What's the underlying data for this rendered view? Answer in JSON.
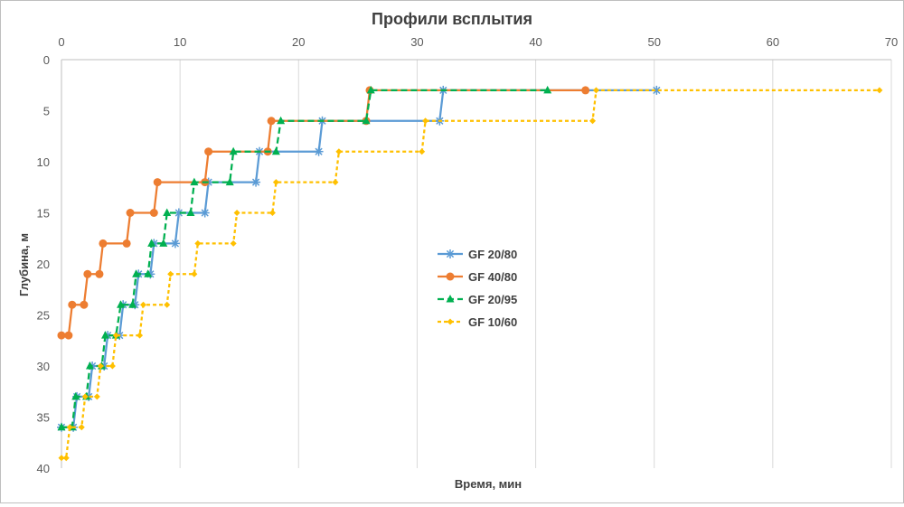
{
  "chart_data": {
    "type": "line",
    "title": "Профили всплытия",
    "xlabel": "Время, мин",
    "ylabel": "Глубина, м",
    "xlim": [
      0,
      70
    ],
    "ylim": [
      0,
      40
    ],
    "y_reversed": true,
    "x_axis_position": "top",
    "x_ticks": [
      0,
      10,
      20,
      30,
      40,
      50,
      60,
      70
    ],
    "y_ticks": [
      0,
      5,
      10,
      15,
      20,
      25,
      30,
      35,
      40
    ],
    "grid": "vertical",
    "legend_position": "center",
    "series": [
      {
        "name": "GF 20/80",
        "color": "#5b9bd5",
        "line": "solid",
        "marker": "asterisk",
        "points": [
          [
            0,
            36
          ],
          [
            1,
            36
          ],
          [
            1.3,
            33
          ],
          [
            2.3,
            33
          ],
          [
            2.6,
            30
          ],
          [
            3.6,
            30
          ],
          [
            3.9,
            27
          ],
          [
            4.9,
            27
          ],
          [
            5.2,
            24
          ],
          [
            6.2,
            24
          ],
          [
            6.5,
            21
          ],
          [
            7.5,
            21
          ],
          [
            7.8,
            18
          ],
          [
            9.6,
            18
          ],
          [
            9.9,
            15
          ],
          [
            12.1,
            15
          ],
          [
            12.4,
            12
          ],
          [
            16.4,
            12
          ],
          [
            16.7,
            9
          ],
          [
            21.7,
            9
          ],
          [
            22,
            6
          ],
          [
            31.9,
            6
          ],
          [
            32.2,
            3
          ],
          [
            50.2,
            3
          ]
        ]
      },
      {
        "name": "GF 40/80",
        "color": "#ed7d31",
        "line": "solid",
        "marker": "circle",
        "points": [
          [
            0,
            27
          ],
          [
            0.6,
            27
          ],
          [
            0.9,
            24
          ],
          [
            1.9,
            24
          ],
          [
            2.2,
            21
          ],
          [
            3.2,
            21
          ],
          [
            3.5,
            18
          ],
          [
            5.5,
            18
          ],
          [
            5.8,
            15
          ],
          [
            7.8,
            15
          ],
          [
            8.1,
            12
          ],
          [
            12.1,
            12
          ],
          [
            12.4,
            9
          ],
          [
            17.4,
            9
          ],
          [
            17.7,
            6
          ],
          [
            25.7,
            6
          ],
          [
            26,
            3
          ],
          [
            44.2,
            3
          ]
        ]
      },
      {
        "name": "GF 20/95",
        "color": "#00b050",
        "line": "dashed",
        "marker": "triangle",
        "points": [
          [
            0,
            36
          ],
          [
            0.9,
            36
          ],
          [
            1.2,
            33
          ],
          [
            2.1,
            33
          ],
          [
            2.4,
            30
          ],
          [
            3.4,
            30
          ],
          [
            3.7,
            27
          ],
          [
            4.6,
            27
          ],
          [
            5,
            24
          ],
          [
            6,
            24
          ],
          [
            6.3,
            21
          ],
          [
            7.3,
            21
          ],
          [
            7.6,
            18
          ],
          [
            8.6,
            18
          ],
          [
            8.9,
            15
          ],
          [
            10.9,
            15
          ],
          [
            11.2,
            12
          ],
          [
            14.2,
            12
          ],
          [
            14.5,
            9
          ],
          [
            18.1,
            9
          ],
          [
            18.5,
            6
          ],
          [
            25.7,
            6
          ],
          [
            26.1,
            3
          ],
          [
            41,
            3
          ]
        ]
      },
      {
        "name": "GF 10/60",
        "color": "#ffc000",
        "line": "dashed",
        "marker": "diamond",
        "points": [
          [
            0,
            39
          ],
          [
            0.4,
            39
          ],
          [
            0.7,
            36
          ],
          [
            1.7,
            36
          ],
          [
            2,
            33
          ],
          [
            3,
            33
          ],
          [
            3.3,
            30
          ],
          [
            4.3,
            30
          ],
          [
            4.6,
            27
          ],
          [
            6.6,
            27
          ],
          [
            6.9,
            24
          ],
          [
            8.9,
            24
          ],
          [
            9.2,
            21
          ],
          [
            11.2,
            21
          ],
          [
            11.5,
            18
          ],
          [
            14.5,
            18
          ],
          [
            14.8,
            15
          ],
          [
            17.8,
            15
          ],
          [
            18.1,
            12
          ],
          [
            23.1,
            12
          ],
          [
            23.4,
            9
          ],
          [
            30.4,
            9
          ],
          [
            30.7,
            6
          ],
          [
            44.8,
            6
          ],
          [
            45.1,
            3
          ],
          [
            69,
            3
          ]
        ]
      }
    ]
  }
}
